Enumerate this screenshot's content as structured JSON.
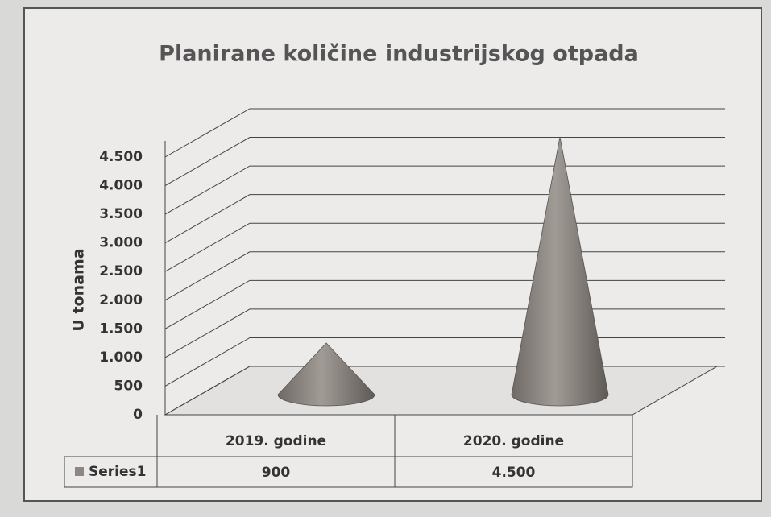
{
  "chart_data": {
    "type": "cone",
    "title": "Planirane količine industrijskog otpada",
    "y_axis_label": "U tonama",
    "categories": [
      "2019. godine",
      "2020. godine"
    ],
    "series": [
      {
        "name": "Series1",
        "color": "#8c8782",
        "values": [
          900,
          4500
        ],
        "value_labels": [
          "900",
          "4.500"
        ]
      }
    ],
    "ylim": [
      0,
      4500
    ],
    "yticks": [
      0,
      500,
      {
        "value": 1000,
        "label": "1.000"
      },
      {
        "value": 1500,
        "label": "1.500"
      },
      {
        "value": 2000,
        "label": "2.000"
      },
      {
        "value": 2500,
        "label": "2.500"
      },
      {
        "value": 3000,
        "label": "3.000"
      },
      {
        "value": 3500,
        "label": "3.500"
      },
      {
        "value": 4000,
        "label": "4.000"
      },
      {
        "value": 4500,
        "label": "4.500"
      }
    ],
    "grid": true,
    "data_table": true
  }
}
